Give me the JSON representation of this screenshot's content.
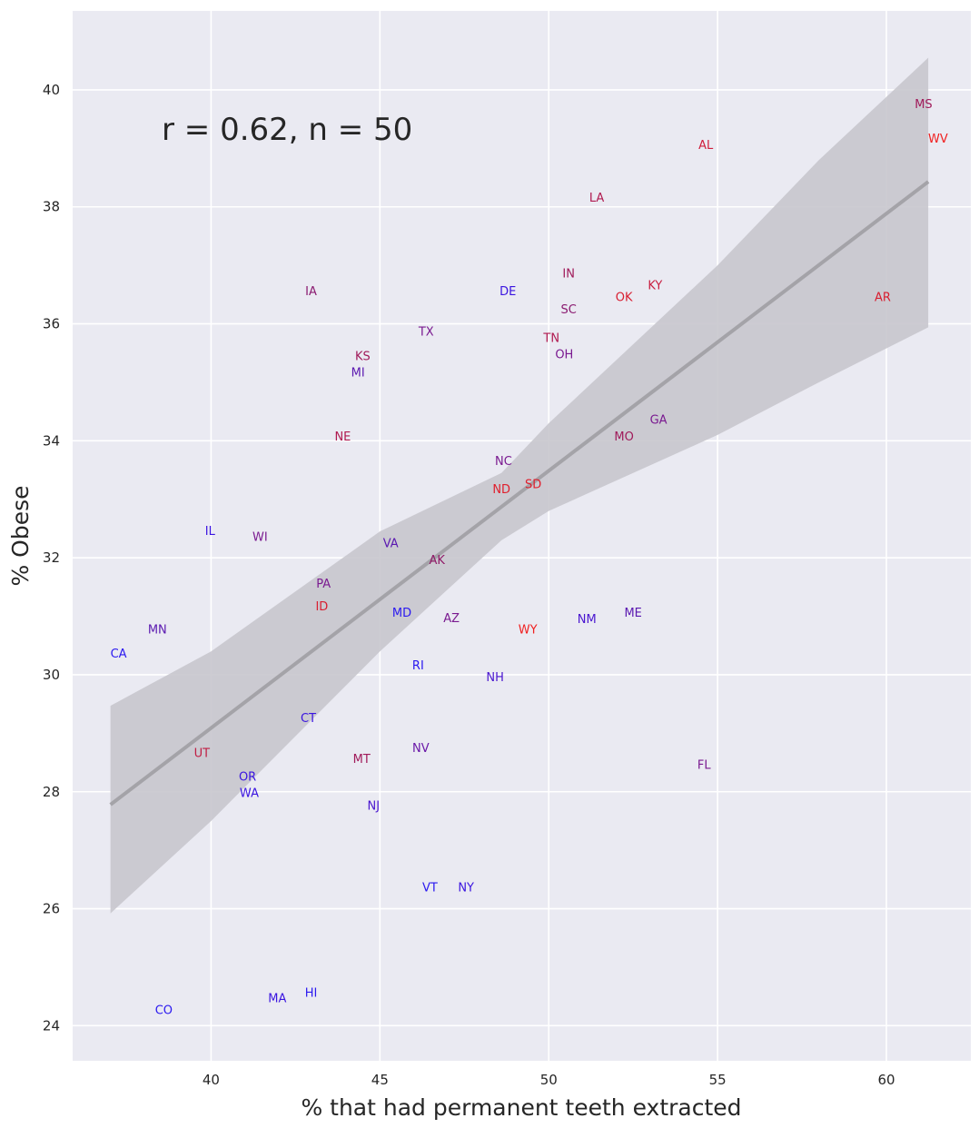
{
  "chart_data": {
    "type": "scatter",
    "title": "",
    "xlabel": "% that had permanent teeth extracted",
    "ylabel": "% Obese",
    "xlim": [
      35.9,
      62.5
    ],
    "ylim": [
      23.4,
      41.35
    ],
    "xticks": [
      40,
      45,
      50,
      55,
      60
    ],
    "yticks": [
      24,
      26,
      28,
      30,
      32,
      34,
      36,
      38,
      40
    ],
    "grid": true,
    "background": "#eaeaf2",
    "annotation": "r = 0.62, n = 50",
    "regression": {
      "line": {
        "x": [
          37.02,
          61.24
        ],
        "y": [
          27.78,
          38.43
        ],
        "color": "#a4a3a8"
      },
      "ci_band": {
        "x": [
          37.02,
          40,
          45,
          48.6,
          50,
          55,
          58,
          61.24
        ],
        "upper": [
          29.47,
          30.4,
          32.45,
          33.45,
          34.3,
          37.0,
          38.8,
          40.55
        ],
        "lower": [
          25.92,
          27.5,
          30.4,
          32.3,
          32.8,
          34.1,
          35.0,
          35.94
        ],
        "color": "#c8c7cd"
      }
    },
    "points": [
      {
        "label": "MS",
        "x": 61.1,
        "y": 39.77,
        "color": "#a01a5a"
      },
      {
        "label": "WV",
        "x": 61.53,
        "y": 39.18,
        "color": "#f02020"
      },
      {
        "label": "AL",
        "x": 54.65,
        "y": 39.07,
        "color": "#d01e3c"
      },
      {
        "label": "LA",
        "x": 51.42,
        "y": 38.17,
        "color": "#b01a50"
      },
      {
        "label": "IN",
        "x": 50.59,
        "y": 36.87,
        "color": "#a01a5a"
      },
      {
        "label": "KY",
        "x": 53.15,
        "y": 36.67,
        "color": "#c81e40"
      },
      {
        "label": "IA",
        "x": 42.96,
        "y": 36.57,
        "color": "#8a1a70"
      },
      {
        "label": "DE",
        "x": 48.79,
        "y": 36.57,
        "color": "#3a14e0"
      },
      {
        "label": "OK",
        "x": 52.23,
        "y": 36.47,
        "color": "#d81e30"
      },
      {
        "label": "AR",
        "x": 59.89,
        "y": 36.47,
        "color": "#d81e30"
      },
      {
        "label": "SC",
        "x": 50.59,
        "y": 36.26,
        "color": "#8a1a70"
      },
      {
        "label": "TX",
        "x": 46.37,
        "y": 35.88,
        "color": "#7a1a90"
      },
      {
        "label": "TN",
        "x": 50.08,
        "y": 35.67,
        "color": "#b01a50"
      },
      {
        "label": "OH",
        "x": 50.46,
        "y": 35.58,
        "color": "#7a1a90"
      },
      {
        "label": "KS",
        "x": 44.49,
        "y": 35.36,
        "color": "#a01a5a"
      },
      {
        "label": "MI",
        "x": 44.35,
        "y": 35.27,
        "color": "#5a18b0"
      },
      {
        "label": "GA",
        "x": 53.25,
        "y": 34.37,
        "color": "#7a1a90"
      },
      {
        "label": "NE",
        "x": 43.9,
        "y": 34.08,
        "color": "#b01a50"
      },
      {
        "label": "MO",
        "x": 52.23,
        "y": 34.08,
        "color": "#a01a5a"
      },
      {
        "label": "NC",
        "x": 48.66,
        "y": 33.66,
        "color": "#7a1a90"
      },
      {
        "label": "SD",
        "x": 49.54,
        "y": 33.27,
        "color": "#e01e2c"
      },
      {
        "label": "ND",
        "x": 48.6,
        "y": 33.18,
        "color": "#e01e2c"
      },
      {
        "label": "IL",
        "x": 39.97,
        "y": 32.47,
        "color": "#3a14e0"
      },
      {
        "label": "WI",
        "x": 41.45,
        "y": 32.37,
        "color": "#7a1a90"
      },
      {
        "label": "VA",
        "x": 45.32,
        "y": 32.26,
        "color": "#5a18b0"
      },
      {
        "label": "AK",
        "x": 46.69,
        "y": 31.97,
        "color": "#901a68"
      },
      {
        "label": "PA",
        "x": 43.33,
        "y": 31.57,
        "color": "#7a1a90"
      },
      {
        "label": "ID",
        "x": 43.28,
        "y": 31.18,
        "color": "#d81e30"
      },
      {
        "label": "MD",
        "x": 45.65,
        "y": 31.07,
        "color": "#2a18f0"
      },
      {
        "label": "ME",
        "x": 52.5,
        "y": 31.07,
        "color": "#5a18b0"
      },
      {
        "label": "NM",
        "x": 51.13,
        "y": 30.96,
        "color": "#4a16d0"
      },
      {
        "label": "AZ",
        "x": 47.12,
        "y": 30.98,
        "color": "#7a1a90"
      },
      {
        "label": "MN",
        "x": 38.41,
        "y": 30.78,
        "color": "#5a18b0"
      },
      {
        "label": "WY",
        "x": 49.38,
        "y": 30.78,
        "color": "#f02020"
      },
      {
        "label": "CA",
        "x": 37.26,
        "y": 30.37,
        "color": "#2a18f0"
      },
      {
        "label": "RI",
        "x": 46.13,
        "y": 30.17,
        "color": "#2a18f0"
      },
      {
        "label": "NH",
        "x": 48.41,
        "y": 29.97,
        "color": "#4a16d0"
      },
      {
        "label": "CT",
        "x": 42.88,
        "y": 29.27,
        "color": "#3a14e0"
      },
      {
        "label": "NV",
        "x": 46.21,
        "y": 28.76,
        "color": "#6a18a8"
      },
      {
        "label": "UT",
        "x": 39.73,
        "y": 28.67,
        "color": "#c01e44"
      },
      {
        "label": "MT",
        "x": 44.46,
        "y": 28.57,
        "color": "#a01a5a"
      },
      {
        "label": "FL",
        "x": 54.6,
        "y": 28.47,
        "color": "#7a1a90"
      },
      {
        "label": "OR",
        "x": 41.08,
        "y": 28.17,
        "color": "#3a14e0"
      },
      {
        "label": "WA",
        "x": 41.13,
        "y": 28.08,
        "color": "#3a14e0"
      },
      {
        "label": "NJ",
        "x": 44.81,
        "y": 27.77,
        "color": "#4a16d0"
      },
      {
        "label": "VT",
        "x": 46.48,
        "y": 26.37,
        "color": "#2a18f0"
      },
      {
        "label": "NY",
        "x": 47.55,
        "y": 26.37,
        "color": "#3a14e0"
      },
      {
        "label": "HI",
        "x": 42.96,
        "y": 24.57,
        "color": "#2a18f0"
      },
      {
        "label": "MA",
        "x": 41.96,
        "y": 24.48,
        "color": "#3a14e0"
      },
      {
        "label": "CO",
        "x": 38.6,
        "y": 24.28,
        "color": "#2a18f0"
      }
    ]
  }
}
